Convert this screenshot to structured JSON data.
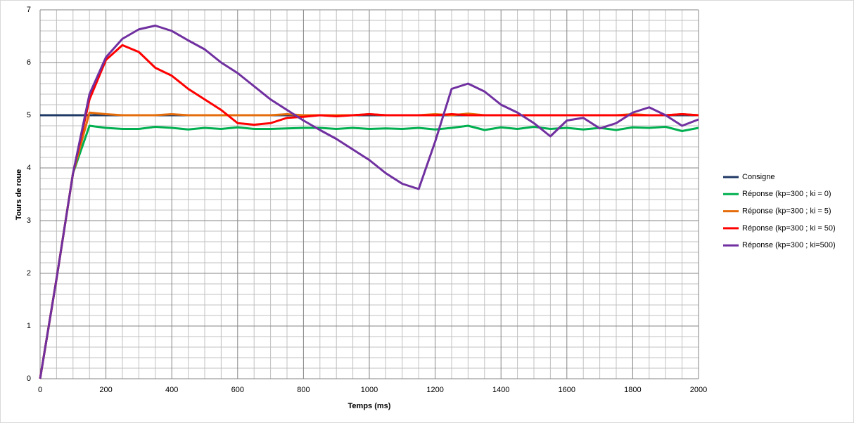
{
  "chart_data": {
    "type": "line",
    "xlabel": "Temps (ms)",
    "ylabel": "Tours de roue",
    "x": [
      0,
      50,
      100,
      150,
      200,
      250,
      300,
      350,
      400,
      450,
      500,
      550,
      600,
      650,
      700,
      750,
      800,
      850,
      900,
      950,
      1000,
      1050,
      1100,
      1150,
      1200,
      1250,
      1300,
      1350,
      1400,
      1450,
      1500,
      1550,
      1600,
      1650,
      1700,
      1750,
      1800,
      1850,
      1900,
      1950,
      2000
    ],
    "series": [
      {
        "name": "Consigne",
        "color": "#1f3864",
        "values": [
          5,
          5,
          5,
          5,
          5,
          5,
          5,
          5,
          5,
          5,
          5,
          5,
          5,
          5,
          5,
          5,
          5,
          5,
          5,
          5,
          5,
          5,
          5,
          5,
          5,
          5,
          5,
          5,
          5,
          5,
          5,
          5,
          5,
          5,
          5,
          5,
          5,
          5,
          5,
          5,
          5
        ]
      },
      {
        "name": "Réponse (kp=300 ; ki = 0)",
        "color": "#00b050",
        "values": [
          0,
          1.9,
          3.9,
          4.8,
          4.76,
          4.74,
          4.74,
          4.78,
          4.76,
          4.73,
          4.76,
          4.74,
          4.77,
          4.74,
          4.74,
          4.75,
          4.76,
          4.76,
          4.74,
          4.76,
          4.74,
          4.75,
          4.74,
          4.76,
          4.73,
          4.76,
          4.8,
          4.72,
          4.77,
          4.74,
          4.78,
          4.74,
          4.76,
          4.73,
          4.76,
          4.72,
          4.77,
          4.76,
          4.78,
          4.7,
          4.76
        ]
      },
      {
        "name": "Réponse (kp=300 ; ki = 5)",
        "color": "#e46c0a",
        "values": [
          0,
          1.9,
          3.9,
          5.05,
          5.02,
          5,
          5,
          5,
          5.02,
          5,
          5,
          5,
          5,
          5,
          5,
          5.02,
          5,
          5,
          5,
          5,
          5.02,
          5,
          5,
          5,
          5.02,
          5,
          5.03,
          5,
          5,
          5,
          5,
          5,
          5,
          5,
          5,
          5,
          5.02,
          5,
          5,
          5.02,
          5
        ]
      },
      {
        "name": "Réponse (kp=300 ; ki = 50)",
        "color": "#ff0000",
        "values": [
          0,
          1.9,
          3.9,
          5.3,
          6.05,
          6.33,
          6.2,
          5.9,
          5.75,
          5.5,
          5.3,
          5.1,
          4.85,
          4.82,
          4.85,
          4.95,
          4.97,
          5,
          4.98,
          5,
          5.02,
          5,
          5,
          5,
          5,
          5.02,
          5,
          5,
          5,
          5,
          5,
          5,
          5,
          5,
          5,
          5,
          5,
          5,
          5,
          5.02,
          5
        ]
      },
      {
        "name": "Réponse (kp=300 ; ki=500)",
        "color": "#7030a0",
        "values": [
          0,
          1.9,
          3.9,
          5.4,
          6.1,
          6.45,
          6.63,
          6.7,
          6.6,
          6.42,
          6.25,
          6,
          5.8,
          5.55,
          5.3,
          5.1,
          4.9,
          4.72,
          4.55,
          4.35,
          4.15,
          3.9,
          3.7,
          3.6,
          4.5,
          5.5,
          5.6,
          5.45,
          5.2,
          5.05,
          4.85,
          4.6,
          4.9,
          4.95,
          4.75,
          4.85,
          5.05,
          5.15,
          5,
          4.8,
          4.92
        ]
      }
    ],
    "xlim": [
      0,
      2000
    ],
    "xticks": [
      0,
      200,
      400,
      600,
      800,
      1000,
      1200,
      1400,
      1600,
      1800,
      2000
    ],
    "ylim": [
      0,
      7
    ],
    "yticks": [
      0,
      1,
      2,
      3,
      4,
      5,
      6,
      7
    ],
    "grid": true,
    "minor_grid": true,
    "legend": "right"
  }
}
